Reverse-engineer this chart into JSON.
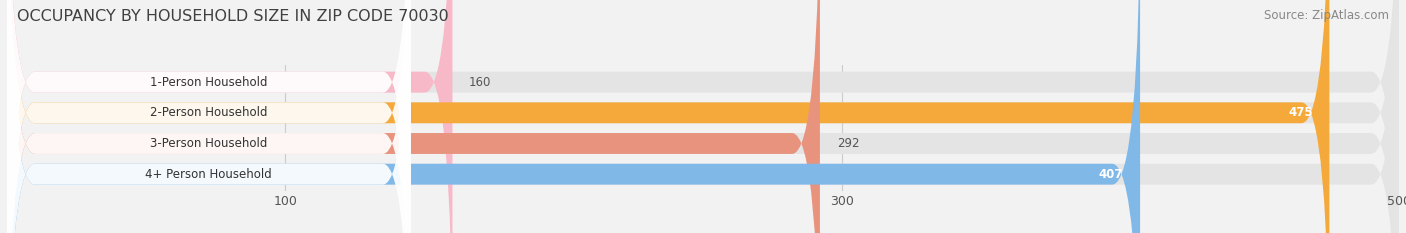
{
  "title": "OCCUPANCY BY HOUSEHOLD SIZE IN ZIP CODE 70030",
  "source": "Source: ZipAtlas.com",
  "categories": [
    "1-Person Household",
    "2-Person Household",
    "3-Person Household",
    "4+ Person Household"
  ],
  "values": [
    160,
    475,
    292,
    407
  ],
  "bar_colors": [
    "#f7b8c8",
    "#f5a93a",
    "#e8937e",
    "#80b8e8"
  ],
  "value_inside": [
    false,
    true,
    false,
    true
  ],
  "xlim_data": [
    0,
    500
  ],
  "xticks": [
    100,
    300,
    500
  ],
  "background_color": "#f2f2f2",
  "bar_bg_color": "#e4e4e4",
  "title_fontsize": 11.5,
  "source_fontsize": 8.5,
  "label_fontsize": 8.5,
  "value_fontsize": 8.5,
  "tick_fontsize": 9
}
